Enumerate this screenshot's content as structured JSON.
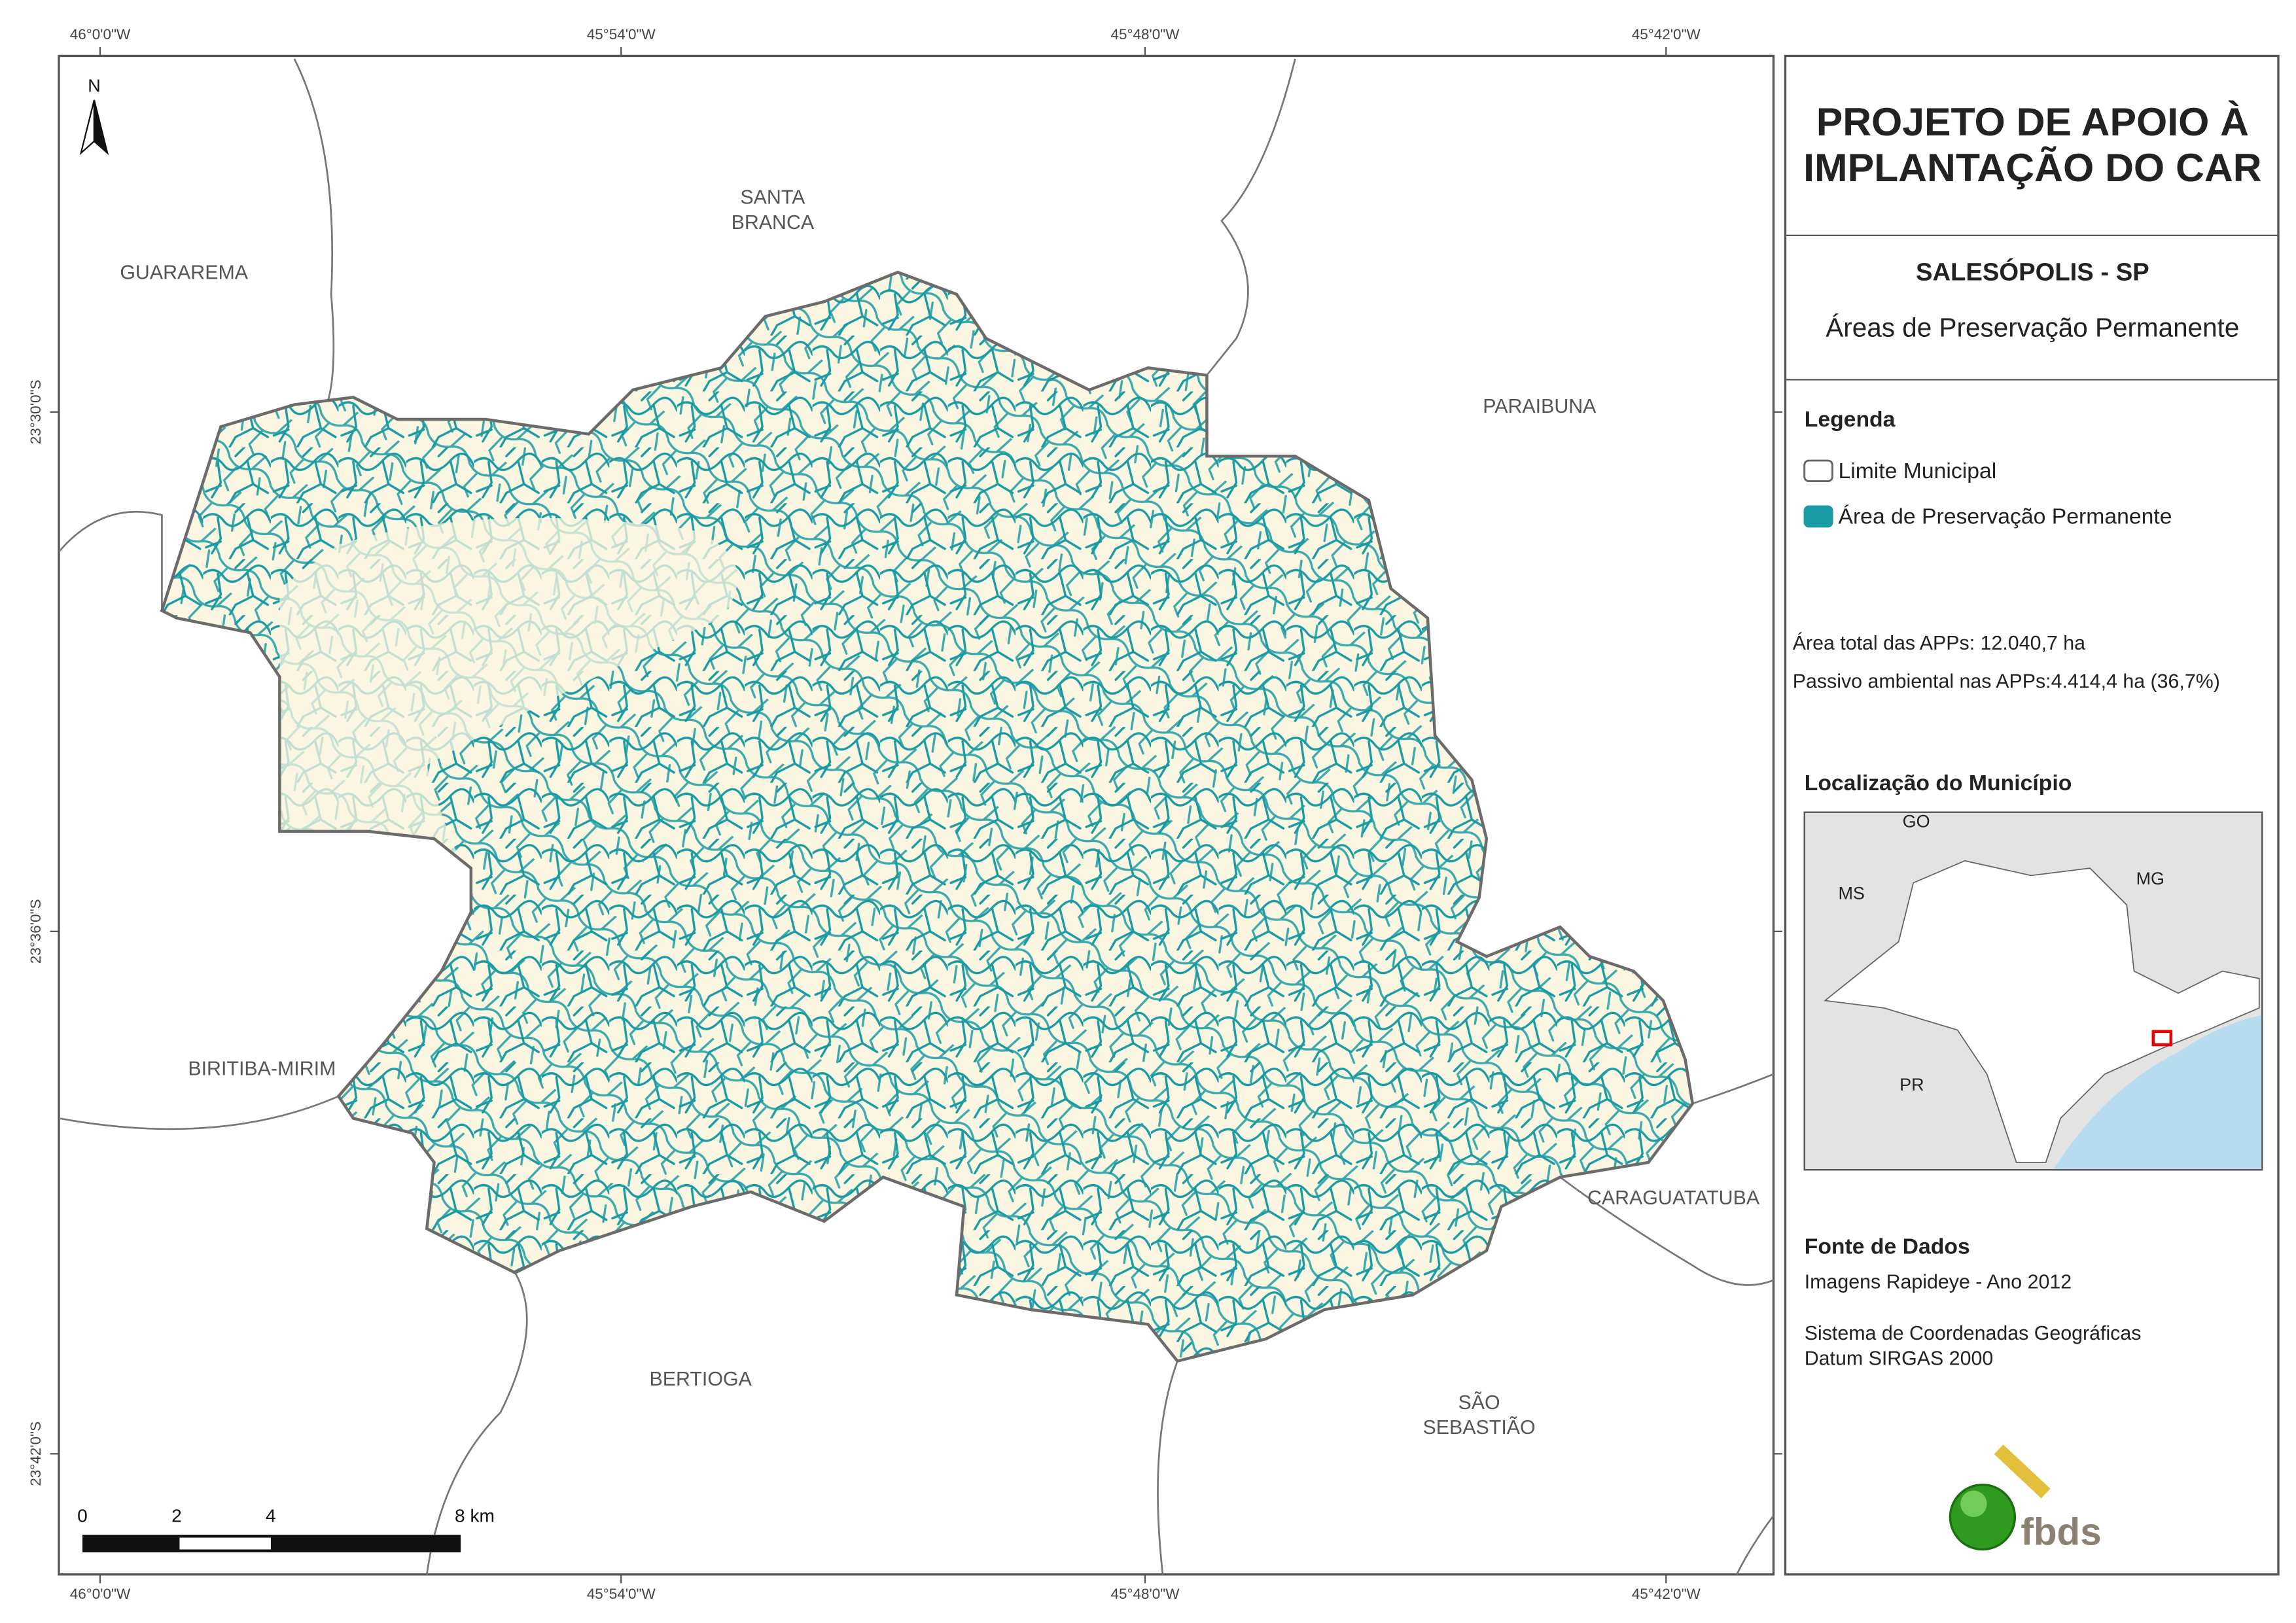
{
  "map": {
    "lon_labels": [
      "46°0'0\"W",
      "45°54'0\"W",
      "45°48'0\"W",
      "45°42'0\"W"
    ],
    "lat_labels": [
      "23°30'0\"S",
      "23°36'0\"S",
      "23°42'0\"S"
    ],
    "north_label": "N",
    "places": [
      {
        "lines": [
          "GUARAREMA"
        ]
      },
      {
        "lines": [
          "SANTA",
          "BRANCA"
        ]
      },
      {
        "lines": [
          "PARAIBUNA"
        ]
      },
      {
        "lines": [
          "BIRITIBA-MIRIM"
        ]
      },
      {
        "lines": [
          "CARAGUATATUBA"
        ]
      },
      {
        "lines": [
          "BERTIOGA"
        ]
      },
      {
        "lines": [
          "SÃO",
          "SEBASTIÃO"
        ]
      }
    ],
    "scale_bar": [
      "0",
      "2",
      "4",
      "8 km"
    ]
  },
  "panel": {
    "title": [
      "PROJETO DE APOIO À",
      "IMPLANTAÇÃO DO CAR"
    ],
    "municipality": "SALESÓPOLIS - SP",
    "theme": "Áreas de Preservação Permanente",
    "legend": {
      "title": "Legenda",
      "items": [
        "Limite Municipal",
        "Área de Preservação Permanente"
      ]
    },
    "stats": [
      "Área total das APPs: 12.040,7 ha",
      "Passivo ambiental nas APPs:4.414,4 ha (36,7%)"
    ],
    "location": {
      "title": "Localização do Município",
      "labels": [
        "GO",
        "MS",
        "MG",
        "PR"
      ]
    },
    "sources": {
      "title": "Fonte de Dados",
      "lines": [
        "Imagens Rapideye - Ano 2012",
        "Sistema de Coordenadas Geográficas",
        "Datum SIRGAS 2000"
      ]
    },
    "logo": "fbds"
  }
}
